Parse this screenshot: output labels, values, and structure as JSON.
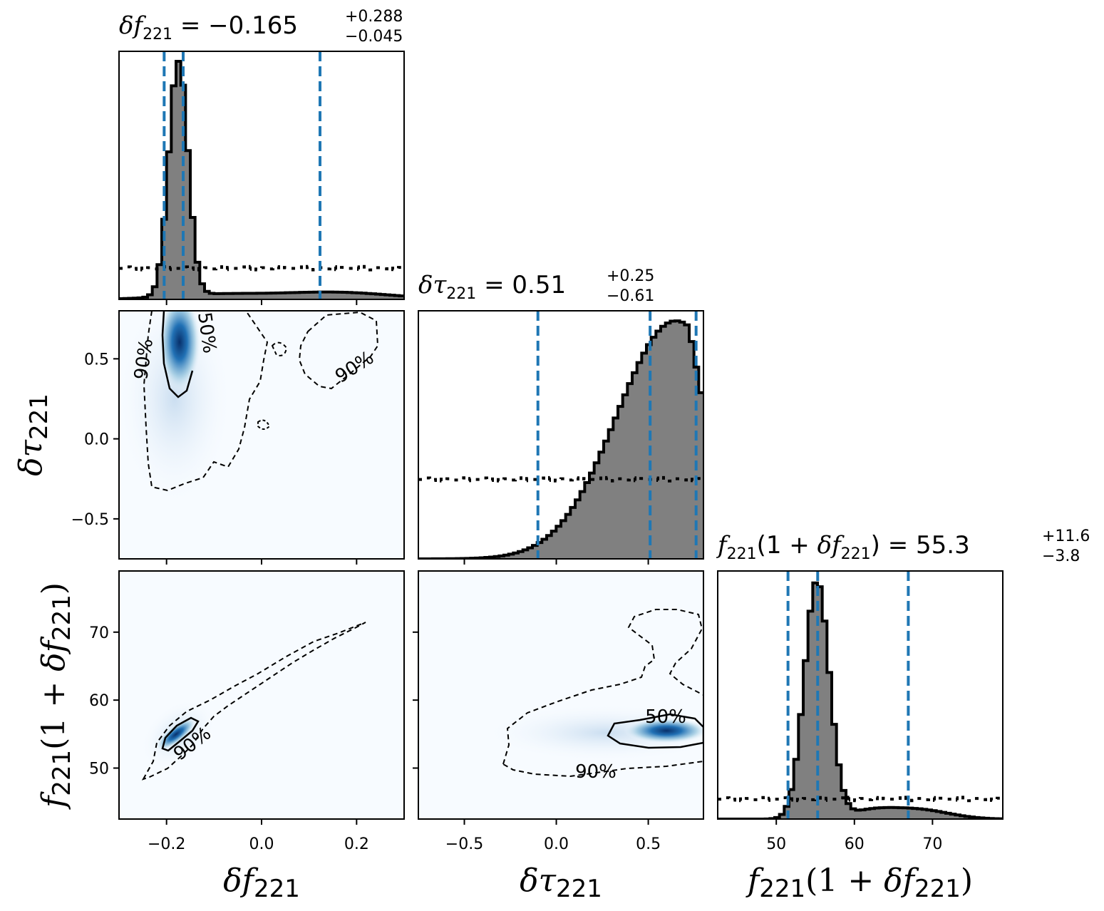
{
  "chart_data": {
    "type": "corner",
    "parameters": [
      {
        "symbol": "δf",
        "sub": "221",
        "range": [
          -0.3,
          0.3
        ],
        "ticks": [
          -0.2,
          0.0,
          0.2
        ],
        "tick_labels": [
          "−0.2",
          "0.0",
          "0.2"
        ]
      },
      {
        "symbol": "δτ",
        "sub": "221",
        "range": [
          -0.75,
          0.8
        ],
        "ticks": [
          -0.5,
          0.0,
          0.5
        ],
        "tick_labels": [
          "−0.5",
          "0.0",
          "0.5"
        ]
      },
      {
        "symbol": "f",
        "sub": "221",
        "suffix_open": "(1 + ",
        "suffix_symbol": "δf",
        "suffix_sub": "221",
        "suffix_close": ")",
        "range": [
          42.5,
          79
        ],
        "ticks": [
          50,
          60,
          70
        ],
        "tick_labels": [
          "50",
          "60",
          "70"
        ]
      }
    ],
    "titles": [
      {
        "median": "−0.165",
        "plus": "+0.288",
        "minus": "−0.045"
      },
      {
        "median": "0.51",
        "plus": "+0.25",
        "minus": "−0.61"
      },
      {
        "median": "55.3",
        "plus": "+11.6",
        "minus": "−3.8"
      }
    ],
    "quantile_lines": [
      [
        -0.205,
        -0.165,
        0.123
      ],
      [
        -0.1,
        0.51,
        0.76
      ],
      [
        51.5,
        55.3,
        66.9
      ]
    ],
    "contour_labels": {
      "pair_1_0": [
        "90%",
        "50%",
        "90%"
      ],
      "pair_2_0": [
        "90%"
      ],
      "pair_2_1": [
        "50%",
        "90%"
      ]
    },
    "hist_fill_color": "#808080",
    "quantile_color": "#1f77b4",
    "density_colormap": "Blues"
  }
}
